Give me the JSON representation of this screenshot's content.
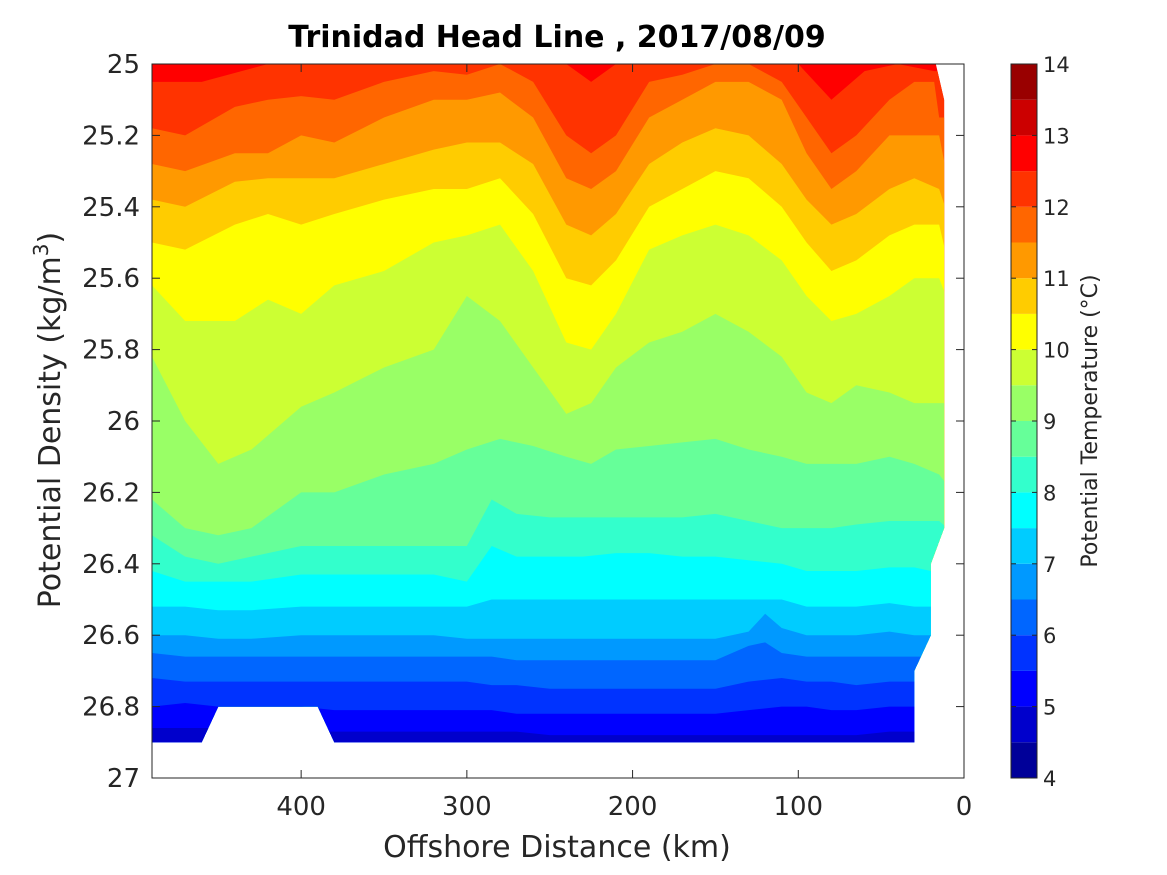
{
  "chart_data": {
    "type": "heatmap",
    "subtype": "filled-contour",
    "title": "Trinidad Head Line , 2017/08/09",
    "xlabel": "Offshore Distance (km)",
    "ylabel_main": "Potential Density (kg/m",
    "ylabel_sup": "3",
    "ylabel_close": ")",
    "xlim": [
      490,
      0
    ],
    "xaxis_reversed": true,
    "ylim": [
      25,
      27
    ],
    "yaxis_reversed": true,
    "xticks": [
      400,
      300,
      200,
      100,
      0
    ],
    "xtick_labels": [
      "400",
      "300",
      "200",
      "100",
      "0"
    ],
    "yticks": [
      25,
      25.2,
      25.4,
      25.6,
      25.8,
      26,
      26.2,
      26.4,
      26.6,
      26.8,
      27
    ],
    "ytick_labels": [
      "25",
      "25.2",
      "25.4",
      "25.6",
      "25.8",
      "26",
      "26.2",
      "26.4",
      "26.6",
      "26.8",
      "27"
    ],
    "colorbar": {
      "label": "Potential Temperature (°C)",
      "min": 4,
      "max": 14,
      "step": 0.5,
      "ticks": [
        4,
        5,
        6,
        7,
        8,
        9,
        10,
        11,
        12,
        13,
        14
      ],
      "tick_labels": [
        "4",
        "5",
        "6",
        "7",
        "8",
        "9",
        "10",
        "11",
        "12",
        "13",
        "14"
      ],
      "colormap": "jet"
    },
    "contour_boundaries": [
      {
        "level": 12.5,
        "x": [
          490,
          460,
          420,
          400,
          380,
          350,
          320,
          300,
          280,
          260,
          240,
          225,
          210,
          180,
          160,
          140,
          120,
          100,
          80,
          60,
          40,
          18
        ],
        "y": [
          25.05,
          25.05,
          25.0,
          25.0,
          25.0,
          25.0,
          25.0,
          25.0,
          25.0,
          25.0,
          25.0,
          25.05,
          25.0,
          25.0,
          25.0,
          25.0,
          25.0,
          25.0,
          25.1,
          25.02,
          25.0,
          25.02
        ]
      },
      {
        "level": 12,
        "x": [
          490,
          470,
          440,
          420,
          400,
          380,
          350,
          320,
          300,
          280,
          260,
          240,
          225,
          210,
          190,
          170,
          150,
          130,
          110,
          95,
          80,
          65,
          45,
          30,
          18,
          15
        ],
        "y": [
          25.18,
          25.2,
          25.12,
          25.1,
          25.09,
          25.1,
          25.05,
          25.02,
          25.03,
          25.0,
          25.05,
          25.2,
          25.25,
          25.2,
          25.05,
          25.03,
          25.0,
          25.0,
          25.05,
          25.15,
          25.25,
          25.2,
          25.1,
          25.05,
          25.05,
          25.15
        ]
      },
      {
        "level": 11.5,
        "x": [
          490,
          470,
          440,
          420,
          400,
          380,
          350,
          320,
          300,
          280,
          260,
          240,
          225,
          210,
          190,
          170,
          150,
          130,
          110,
          95,
          80,
          65,
          45,
          30,
          15,
          10
        ],
        "y": [
          25.28,
          25.3,
          25.25,
          25.25,
          25.2,
          25.22,
          25.15,
          25.1,
          25.1,
          25.08,
          25.15,
          25.32,
          25.35,
          25.3,
          25.15,
          25.1,
          25.05,
          25.05,
          25.1,
          25.25,
          25.35,
          25.3,
          25.2,
          25.2,
          25.2,
          25.32
        ]
      },
      {
        "level": 11,
        "x": [
          490,
          470,
          440,
          420,
          400,
          380,
          350,
          320,
          300,
          280,
          260,
          240,
          225,
          210,
          190,
          170,
          150,
          130,
          110,
          95,
          80,
          65,
          45,
          30,
          15,
          10
        ],
        "y": [
          25.38,
          25.4,
          25.33,
          25.32,
          25.32,
          25.32,
          25.28,
          25.24,
          25.22,
          25.22,
          25.28,
          25.45,
          25.48,
          25.42,
          25.28,
          25.22,
          25.18,
          25.2,
          25.28,
          25.38,
          25.45,
          25.42,
          25.35,
          25.32,
          25.35,
          25.42
        ]
      },
      {
        "level": 10.5,
        "x": [
          490,
          470,
          440,
          420,
          400,
          380,
          350,
          320,
          300,
          280,
          260,
          240,
          225,
          210,
          190,
          170,
          150,
          130,
          110,
          95,
          80,
          65,
          45,
          30,
          15,
          10
        ],
        "y": [
          25.5,
          25.52,
          25.45,
          25.42,
          25.45,
          25.42,
          25.38,
          25.35,
          25.35,
          25.32,
          25.42,
          25.6,
          25.62,
          25.55,
          25.4,
          25.35,
          25.3,
          25.32,
          25.4,
          25.5,
          25.58,
          25.55,
          25.48,
          25.45,
          25.45,
          25.55
        ]
      },
      {
        "level": 10,
        "x": [
          490,
          470,
          440,
          420,
          400,
          380,
          350,
          320,
          300,
          280,
          260,
          240,
          225,
          210,
          190,
          170,
          150,
          130,
          110,
          95,
          80,
          65,
          45,
          30,
          15,
          10
        ],
        "y": [
          25.62,
          25.72,
          25.72,
          25.66,
          25.7,
          25.62,
          25.58,
          25.5,
          25.48,
          25.45,
          25.58,
          25.78,
          25.8,
          25.7,
          25.52,
          25.48,
          25.45,
          25.48,
          25.55,
          25.65,
          25.72,
          25.7,
          25.65,
          25.6,
          25.6,
          25.66
        ]
      },
      {
        "level": 9.5,
        "x": [
          490,
          470,
          450,
          430,
          400,
          380,
          350,
          320,
          300,
          280,
          260,
          240,
          225,
          210,
          190,
          170,
          150,
          130,
          110,
          95,
          80,
          65,
          45,
          30,
          15,
          10
        ],
        "y": [
          25.82,
          26.0,
          26.12,
          26.08,
          25.96,
          25.92,
          25.85,
          25.8,
          25.65,
          25.72,
          25.85,
          25.98,
          25.95,
          25.85,
          25.78,
          25.75,
          25.7,
          25.75,
          25.82,
          25.92,
          25.95,
          25.9,
          25.92,
          25.95,
          25.95,
          25.95
        ]
      },
      {
        "level": 9,
        "x": [
          490,
          470,
          450,
          430,
          400,
          380,
          350,
          320,
          300,
          280,
          260,
          240,
          225,
          210,
          190,
          170,
          150,
          130,
          110,
          95,
          80,
          65,
          45,
          30,
          15,
          10
        ],
        "y": [
          26.22,
          26.3,
          26.32,
          26.3,
          26.2,
          26.2,
          26.15,
          26.12,
          26.08,
          26.05,
          26.07,
          26.1,
          26.12,
          26.08,
          26.07,
          26.06,
          26.05,
          26.08,
          26.1,
          26.12,
          26.12,
          26.12,
          26.1,
          26.12,
          26.15,
          26.18
        ]
      },
      {
        "level": 8.5,
        "x": [
          490,
          470,
          450,
          430,
          400,
          380,
          350,
          320,
          300,
          285,
          270,
          250,
          230,
          210,
          190,
          170,
          150,
          130,
          110,
          95,
          80,
          65,
          45,
          30,
          15,
          10
        ],
        "y": [
          26.32,
          26.38,
          26.4,
          26.38,
          26.35,
          26.35,
          26.35,
          26.35,
          26.35,
          26.22,
          26.26,
          26.27,
          26.27,
          26.27,
          26.27,
          26.27,
          26.26,
          26.28,
          26.3,
          26.3,
          26.3,
          26.29,
          26.28,
          26.28,
          26.28,
          26.3
        ]
      },
      {
        "level": 8,
        "x": [
          490,
          470,
          450,
          430,
          400,
          380,
          350,
          320,
          300,
          285,
          270,
          250,
          230,
          210,
          190,
          170,
          150,
          130,
          110,
          95,
          80,
          65,
          45,
          30,
          20
        ],
        "y": [
          26.42,
          26.45,
          26.45,
          26.45,
          26.43,
          26.43,
          26.43,
          26.43,
          26.45,
          26.35,
          26.38,
          26.38,
          26.38,
          26.37,
          26.37,
          26.38,
          26.38,
          26.39,
          26.4,
          26.42,
          26.42,
          26.42,
          26.41,
          26.41,
          26.42
        ]
      },
      {
        "level": 7.5,
        "x": [
          490,
          470,
          450,
          430,
          400,
          380,
          350,
          320,
          300,
          285,
          270,
          250,
          230,
          210,
          190,
          170,
          150,
          130,
          110,
          95,
          80,
          65,
          45,
          30,
          20
        ],
        "y": [
          26.52,
          26.52,
          26.53,
          26.53,
          26.52,
          26.52,
          26.52,
          26.52,
          26.52,
          26.5,
          26.5,
          26.5,
          26.5,
          26.5,
          26.5,
          26.5,
          26.5,
          26.5,
          26.5,
          26.52,
          26.52,
          26.52,
          26.51,
          26.52,
          26.52
        ]
      },
      {
        "level": 7,
        "x": [
          490,
          470,
          450,
          430,
          400,
          380,
          350,
          320,
          300,
          285,
          270,
          250,
          230,
          210,
          190,
          170,
          150,
          130,
          120,
          110,
          95,
          80,
          65,
          45,
          30,
          20
        ],
        "y": [
          26.6,
          26.6,
          26.61,
          26.61,
          26.6,
          26.6,
          26.6,
          26.6,
          26.61,
          26.61,
          26.61,
          26.61,
          26.61,
          26.61,
          26.61,
          26.61,
          26.61,
          26.59,
          26.54,
          26.58,
          26.6,
          26.6,
          26.6,
          26.59,
          26.6,
          26.6
        ]
      },
      {
        "level": 6.5,
        "x": [
          490,
          470,
          450,
          430,
          400,
          380,
          350,
          320,
          300,
          285,
          270,
          250,
          230,
          210,
          190,
          170,
          150,
          130,
          120,
          110,
          95,
          80,
          65,
          45,
          30,
          20
        ],
        "y": [
          26.65,
          26.66,
          26.66,
          26.66,
          26.66,
          26.66,
          26.66,
          26.66,
          26.66,
          26.66,
          26.67,
          26.67,
          26.67,
          26.67,
          26.67,
          26.67,
          26.67,
          26.63,
          26.62,
          26.65,
          26.66,
          26.66,
          26.66,
          26.66,
          26.66,
          26.66
        ]
      },
      {
        "level": 6,
        "x": [
          490,
          470,
          450,
          430,
          400,
          380,
          350,
          320,
          300,
          285,
          270,
          250,
          230,
          210,
          190,
          170,
          150,
          130,
          110,
          95,
          80,
          65,
          45,
          30
        ],
        "y": [
          26.72,
          26.73,
          26.73,
          26.73,
          26.73,
          26.73,
          26.73,
          26.73,
          26.73,
          26.74,
          26.74,
          26.75,
          26.75,
          26.75,
          26.75,
          26.75,
          26.75,
          26.73,
          26.72,
          26.73,
          26.73,
          26.74,
          26.73,
          26.73
        ]
      },
      {
        "level": 5.5,
        "x": [
          490,
          470,
          450,
          430,
          400,
          380,
          350,
          320,
          300,
          285,
          270,
          250,
          230,
          210,
          190,
          170,
          150,
          130,
          110,
          95,
          80,
          65,
          45,
          30
        ],
        "y": [
          26.8,
          26.79,
          26.8,
          26.8,
          26.8,
          26.81,
          26.81,
          26.81,
          26.81,
          26.81,
          26.82,
          26.82,
          26.82,
          26.82,
          26.82,
          26.82,
          26.82,
          26.81,
          26.8,
          26.8,
          26.81,
          26.81,
          26.8,
          26.8
        ]
      },
      {
        "level": 5,
        "x": [
          490,
          470,
          450,
          430,
          400,
          380,
          350,
          320,
          300,
          285,
          270,
          250,
          230,
          210,
          190,
          170,
          150,
          130,
          110,
          95,
          80,
          65,
          45,
          30
        ],
        "y": [
          26.86,
          26.86,
          26.86,
          26.86,
          26.87,
          26.87,
          26.87,
          26.87,
          26.87,
          26.87,
          26.87,
          26.88,
          26.88,
          26.88,
          26.88,
          26.88,
          26.88,
          26.88,
          26.88,
          26.88,
          26.88,
          26.88,
          26.87,
          26.87
        ]
      }
    ],
    "data_extent_right": {
      "x": [
        17,
        12,
        12,
        12,
        20,
        20,
        30,
        30
      ],
      "y": [
        25.0,
        25.1,
        25.7,
        26.3,
        26.4,
        26.6,
        26.7,
        26.9
      ]
    },
    "data_extent_bottom": {
      "x": [
        490,
        460,
        450,
        440,
        430,
        400,
        390,
        380,
        30
      ],
      "y": [
        26.9,
        26.9,
        26.8,
        26.8,
        26.8,
        26.8,
        26.8,
        26.9,
        26.9
      ]
    }
  }
}
